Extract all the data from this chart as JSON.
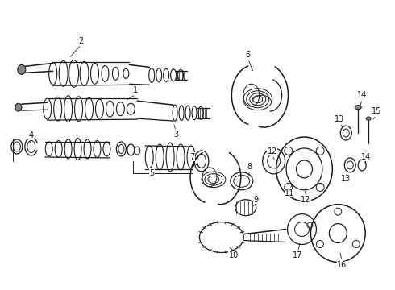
{
  "background_color": "#ffffff",
  "figsize": [
    4.9,
    3.6
  ],
  "dpi": 100,
  "image_b64": ""
}
